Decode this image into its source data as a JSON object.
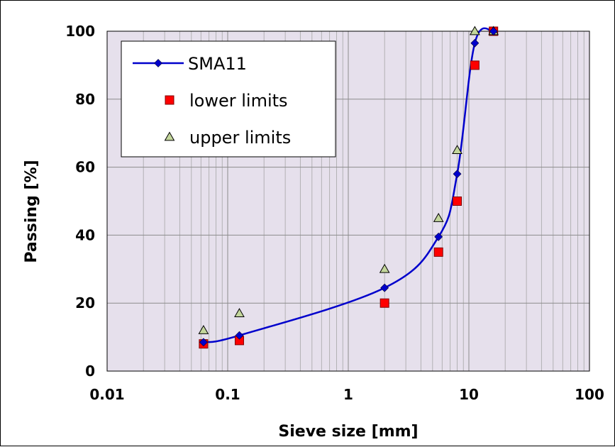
{
  "chart_data": {
    "type": "scatter",
    "title": "",
    "xlabel": "Sieve size [mm]",
    "ylabel": "Passing [%]",
    "x_scale": "log",
    "xlim": [
      0.01,
      100
    ],
    "ylim": [
      0,
      100
    ],
    "x_ticks": [
      "0.01",
      "0.1",
      "1",
      "10",
      "100"
    ],
    "x_tick_values": [
      0.01,
      0.1,
      1,
      10,
      100
    ],
    "y_ticks": [
      "0",
      "20",
      "40",
      "60",
      "80",
      "100"
    ],
    "y_tick_values": [
      0,
      20,
      40,
      60,
      80,
      100
    ],
    "grid": true,
    "legend_position": "top-left",
    "plot_background": "#E6E0EC",
    "series": [
      {
        "name": "SMA11",
        "style": "line-with-diamond-markers",
        "color": "#0000CC",
        "x": [
          0.063,
          0.125,
          2,
          5.6,
          8,
          11.2,
          16
        ],
        "y": [
          8.5,
          10.5,
          24.5,
          39.5,
          58,
          96.5,
          100
        ]
      },
      {
        "name": "lower limits",
        "style": "square-markers",
        "color": "#FF0000",
        "x": [
          0.063,
          0.125,
          2,
          5.6,
          8,
          11.2,
          16
        ],
        "y": [
          8,
          9,
          20,
          35,
          50,
          90,
          100
        ]
      },
      {
        "name": "upper limits",
        "style": "triangle-markers",
        "color": "#C3D69B",
        "x": [
          0.063,
          0.125,
          2,
          5.6,
          8,
          11.2,
          16
        ],
        "y": [
          12,
          17,
          30,
          45,
          65,
          100,
          100
        ]
      }
    ]
  }
}
